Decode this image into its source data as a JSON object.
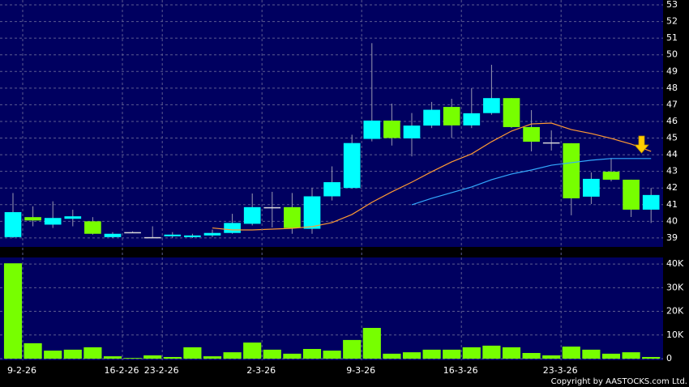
{
  "chart_data": [
    {
      "type": "candlestick",
      "open": [
        39.05,
        40.25,
        39.8,
        40.15,
        40.0,
        39.05,
        39.35,
        39.05,
        39.1,
        39.05,
        39.15,
        39.3,
        39.85,
        40.85,
        40.85,
        39.55,
        41.5,
        42.0,
        44.95,
        46.05,
        44.98,
        45.75,
        46.87,
        45.76,
        46.5,
        47.4,
        45.66,
        44.74,
        44.69,
        41.48,
        42.98,
        42.5,
        40.7
      ],
      "high": [
        41.7,
        40.9,
        41.2,
        40.7,
        40.25,
        39.35,
        39.4,
        39.7,
        39.35,
        39.25,
        39.5,
        40.45,
        41.67,
        41.77,
        41.7,
        42.0,
        43.3,
        45.2,
        50.7,
        47.07,
        46.5,
        47.17,
        47.36,
        48.0,
        49.4,
        47.4,
        46.68,
        45.46,
        44.69,
        42.94,
        43.8,
        42.5,
        42.0
      ],
      "low": [
        39.0,
        39.7,
        39.6,
        39.7,
        39.2,
        39.0,
        39.3,
        39.0,
        39.0,
        39.0,
        39.05,
        39.25,
        39.75,
        39.63,
        39.25,
        39.25,
        41.25,
        41.95,
        44.8,
        44.55,
        43.9,
        45.6,
        45.0,
        45.6,
        46.4,
        45.6,
        44.2,
        44.25,
        40.36,
        41.04,
        42.4,
        40.26,
        39.9
      ],
      "close": [
        40.55,
        40.05,
        40.2,
        40.3,
        39.25,
        39.25,
        39.35,
        39.05,
        39.2,
        39.15,
        39.3,
        39.9,
        40.85,
        40.85,
        39.6,
        41.5,
        42.35,
        44.7,
        46.05,
        45.0,
        45.75,
        46.7,
        45.76,
        46.49,
        47.4,
        45.66,
        44.78,
        44.74,
        41.38,
        42.55,
        42.5,
        40.7,
        41.58
      ],
      "up_color": "#00ffff",
      "down_color": "#77ff00",
      "flat_color": "#d8d8d8",
      "series": [
        {
          "color": "#ff9a33",
          "values": [
            null,
            null,
            null,
            null,
            null,
            null,
            null,
            null,
            null,
            null,
            39.6,
            39.48,
            39.48,
            39.53,
            39.58,
            39.68,
            39.92,
            40.41,
            41.14,
            41.77,
            42.35,
            42.98,
            43.57,
            44.05,
            44.78,
            45.42,
            45.85,
            45.9,
            45.51,
            45.27,
            44.98,
            44.64,
            44.2
          ]
        },
        {
          "color": "#33aaff",
          "values": [
            null,
            null,
            null,
            null,
            null,
            null,
            null,
            null,
            null,
            null,
            null,
            null,
            null,
            null,
            null,
            null,
            null,
            null,
            null,
            null,
            40.99,
            41.38,
            41.72,
            42.06,
            42.5,
            42.84,
            43.08,
            43.37,
            43.52,
            43.67,
            43.77,
            43.77,
            43.77
          ]
        }
      ],
      "ylim": [
        38.46,
        53.05
      ],
      "yticks": [
        39,
        40,
        41,
        42,
        43,
        44,
        45,
        46,
        47,
        48,
        49,
        50,
        51,
        52,
        53
      ],
      "grid": true
    },
    {
      "type": "bar",
      "categories": [
        "9-2-26",
        null,
        null,
        null,
        null,
        "16-2-26",
        null,
        "23-2-26",
        null,
        null,
        null,
        null,
        "2-3-26",
        null,
        null,
        null,
        null,
        "9-3-26",
        null,
        null,
        null,
        null,
        "16-3-26",
        null,
        null,
        null,
        null,
        "23-3-26",
        null,
        null,
        null,
        null,
        null
      ],
      "values": [
        40.3,
        6.5,
        3.4,
        3.8,
        4.8,
        1.0,
        0.3,
        1.4,
        0.7,
        4.8,
        1.0,
        2.7,
        6.8,
        3.8,
        2.1,
        4.1,
        3.4,
        7.9,
        13.0,
        2.1,
        2.7,
        3.8,
        3.8,
        4.8,
        5.5,
        4.8,
        2.4,
        1.4,
        5.1,
        3.8,
        2.1,
        2.7,
        0.7
      ],
      "color": "#77ff00",
      "ylim": [
        0,
        41.4
      ],
      "yticks": [
        0,
        {
          "value": 10,
          "label": "10K"
        },
        {
          "value": 20,
          "label": "20K"
        },
        {
          "value": 30,
          "label": "30K"
        },
        {
          "value": 40,
          "label": "40K"
        }
      ],
      "grid": true
    }
  ],
  "copyright": "Copyright by AASTOCKS.com Ltd."
}
